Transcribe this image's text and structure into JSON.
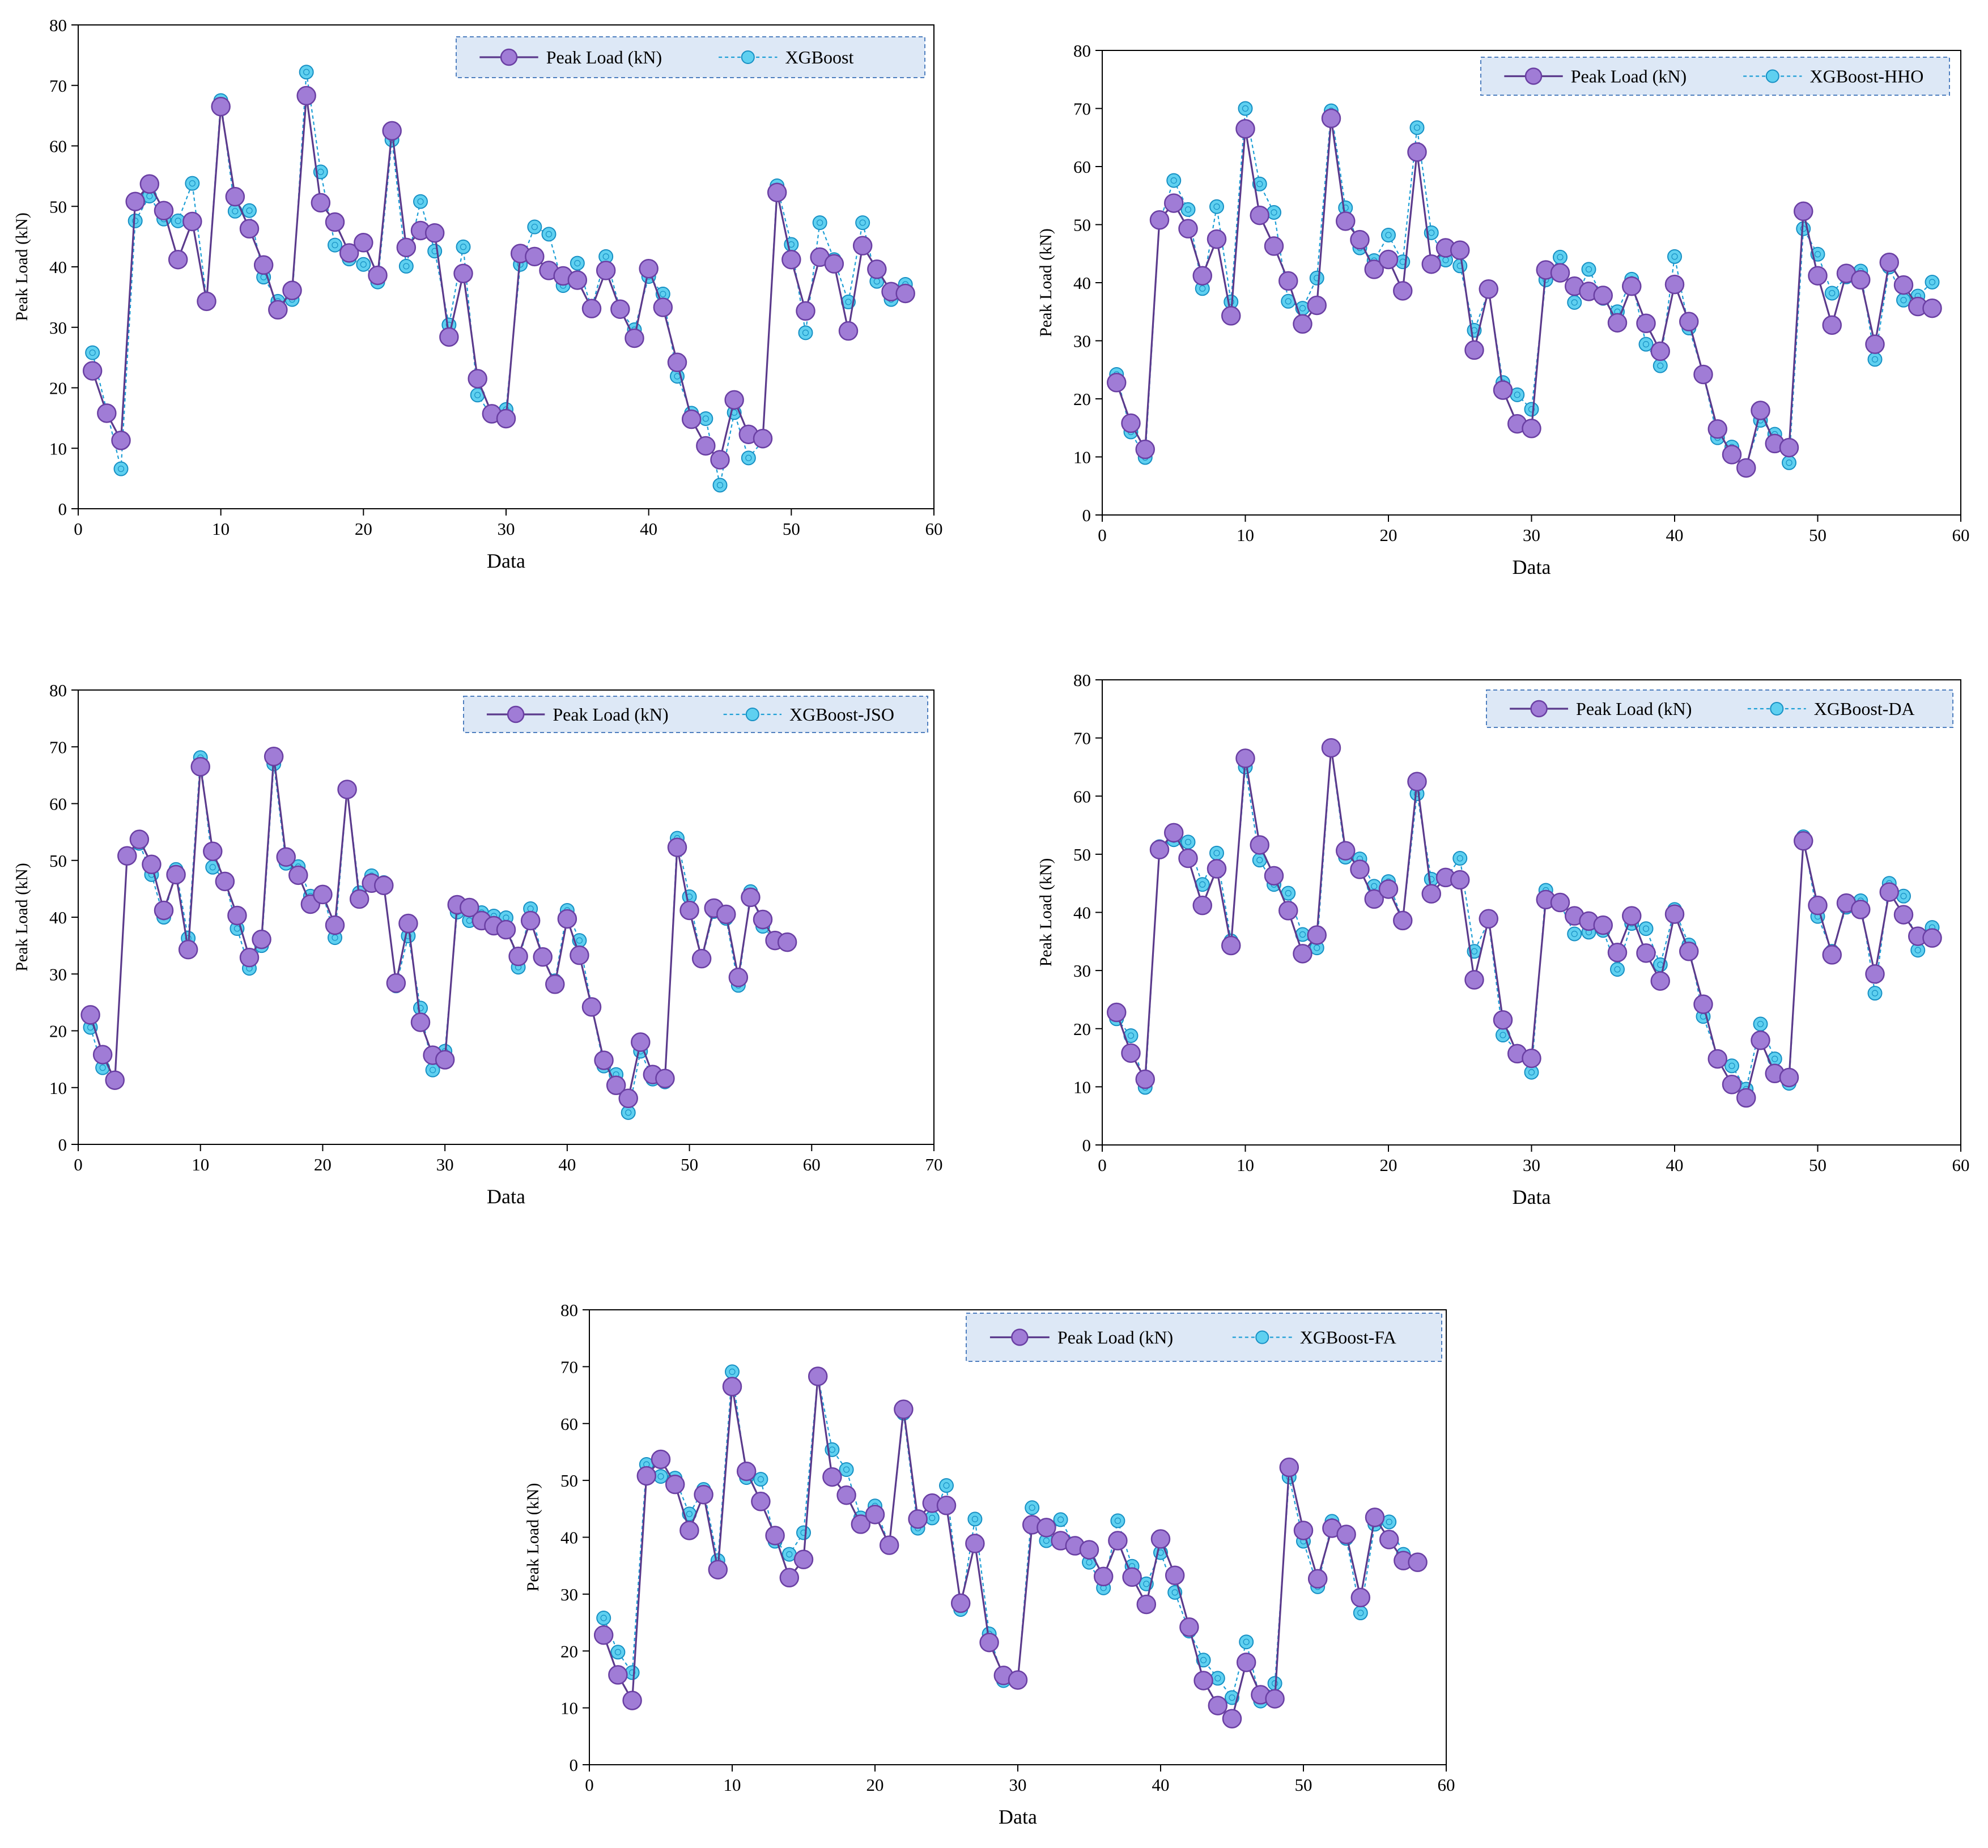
{
  "colors": {
    "actual_line": "#5b3a8c",
    "actual_fill": "#a07cd6",
    "actual_edge": "#6a3fa3",
    "pred_line": "#1e9fd6",
    "pred_fill": "#5fd0f0",
    "pred_edge": "#1790c4",
    "legend_fill": "#dde8f6",
    "legend_border": "#4f7fbf"
  },
  "chart_data": [
    {
      "type": "line",
      "title": "",
      "xlabel": "Data",
      "ylabel": "Peak Load (kN)",
      "xlim": [
        0,
        60
      ],
      "ylim": [
        0,
        80
      ],
      "xticks": [
        "0",
        "10",
        "20",
        "30",
        "40",
        "50",
        "60"
      ],
      "yticks": [
        "0",
        "10",
        "20",
        "30",
        "40",
        "50",
        "60",
        "70",
        "80"
      ],
      "legend_position": "top-right",
      "x": [
        1,
        2,
        3,
        4,
        5,
        6,
        7,
        8,
        9,
        10,
        11,
        12,
        13,
        14,
        15,
        16,
        17,
        18,
        19,
        20,
        21,
        22,
        23,
        24,
        25,
        26,
        27,
        28,
        29,
        30,
        31,
        32,
        33,
        34,
        35,
        36,
        37,
        38,
        39,
        40,
        41,
        42,
        43,
        44,
        45,
        46,
        47,
        48,
        49,
        50,
        51,
        52,
        53,
        54,
        55,
        56,
        57,
        58
      ],
      "series": [
        {
          "name": "Peak Load (kN)",
          "role": "actual",
          "values": [
            22.8,
            15.8,
            11.3,
            50.8,
            53.7,
            49.3,
            41.2,
            47.5,
            34.3,
            66.5,
            51.6,
            46.3,
            40.3,
            32.9,
            36.1,
            68.3,
            50.6,
            47.4,
            42.3,
            44.0,
            38.6,
            62.5,
            43.2,
            46.0,
            45.6,
            28.4,
            38.9,
            21.5,
            15.7,
            14.9,
            42.2,
            41.7,
            39.4,
            38.5,
            37.8,
            33.1,
            39.4,
            33.0,
            28.2,
            39.7,
            33.3,
            24.2,
            14.8,
            10.4,
            8.1,
            18.0,
            12.3,
            11.6,
            52.3,
            41.2,
            32.7,
            41.6,
            40.5,
            29.4,
            43.5,
            39.6,
            35.9,
            35.6
          ]
        },
        {
          "name": "XGBoost",
          "role": "predicted",
          "values": [
            25.8,
            16.2,
            6.6,
            47.6,
            51.7,
            47.9,
            47.6,
            53.8,
            34.6,
            67.5,
            49.2,
            49.3,
            38.3,
            34.3,
            34.6,
            72.2,
            55.7,
            43.6,
            41.3,
            40.4,
            37.5,
            61.0,
            40.1,
            50.8,
            42.6,
            30.4,
            43.3,
            18.8,
            15.3,
            16.4,
            40.4,
            46.6,
            45.4,
            36.9,
            40.6,
            33.2,
            41.7,
            32.9,
            29.6,
            38.4,
            35.5,
            21.9,
            15.8,
            14.9,
            3.9,
            15.9,
            8.4,
            11.2,
            53.4,
            43.7,
            29.1,
            47.3,
            41.2,
            34.2,
            47.3,
            37.6,
            34.6,
            37.1
          ]
        },
        {
          "name": "XGBoost-HHO",
          "role": "predicted",
          "values": [
            24.2,
            14.3,
            9.9,
            50.5,
            57.6,
            52.6,
            39.0,
            53.1,
            36.7,
            70.0,
            57.0,
            52.1,
            36.8,
            35.6,
            40.8,
            69.6,
            52.9,
            46.0,
            43.8,
            48.2,
            43.6,
            66.7,
            48.6,
            43.9,
            42.9,
            31.8,
            38.5,
            22.8,
            20.7,
            18.2,
            40.5,
            44.4,
            36.6,
            42.3,
            37.3,
            35.0,
            40.6,
            29.4,
            25.7,
            44.5,
            32.2,
            24.3,
            13.3,
            11.7,
            8.4,
            16.3,
            13.9,
            9.0,
            49.3,
            44.9,
            38.2,
            41.0,
            42.0,
            26.8,
            42.7,
            37.0,
            37.7,
            40.1
          ]
        },
        {
          "name": "XGBoost-JSO",
          "role": "predicted",
          "values": [
            20.6,
            13.5,
            11.1,
            50.6,
            53.0,
            47.5,
            40.0,
            48.4,
            36.3,
            68.1,
            48.8,
            46.6,
            38.0,
            31.0,
            35.0,
            67.0,
            49.5,
            48.9,
            43.7,
            44.2,
            36.4,
            62.5,
            44.3,
            47.3,
            46.1,
            27.9,
            36.7,
            24.0,
            13.1,
            16.4,
            40.9,
            39.4,
            40.8,
            40.2,
            39.9,
            31.2,
            41.5,
            32.8,
            28.8,
            41.2,
            35.9,
            24.3,
            13.8,
            12.3,
            5.6,
            16.4,
            11.5,
            11.0,
            53.9,
            43.6,
            32.4,
            41.0,
            39.8,
            28.0,
            44.5,
            38.4,
            35.9,
            35.8
          ]
        },
        {
          "name": "XGBoost-DA",
          "role": "predicted",
          "values": [
            21.7,
            18.8,
            9.9,
            51.3,
            52.5,
            52.1,
            44.8,
            50.2,
            35.1,
            65.0,
            49.0,
            44.8,
            43.3,
            36.2,
            33.9,
            68.1,
            49.5,
            49.2,
            44.5,
            45.3,
            38.6,
            60.4,
            45.7,
            45.8,
            49.3,
            33.3,
            38.5,
            18.9,
            16.1,
            12.5,
            43.8,
            41.5,
            36.3,
            36.6,
            36.9,
            30.2,
            38.1,
            37.2,
            31.0,
            40.5,
            34.4,
            22.1,
            15.2,
            13.6,
            9.6,
            20.8,
            14.8,
            10.6,
            53.0,
            39.3,
            33.3,
            40.9,
            42.0,
            26.1,
            45.0,
            42.8,
            33.5,
            37.4
          ]
        },
        {
          "name": "XGBoost-FA",
          "role": "predicted",
          "values": [
            25.8,
            19.8,
            16.2,
            52.8,
            50.7,
            50.4,
            44.1,
            48.4,
            35.9,
            69.1,
            50.5,
            50.2,
            39.3,
            37.0,
            40.8,
            68.4,
            55.4,
            51.9,
            43.4,
            45.5,
            38.5,
            61.8,
            41.6,
            43.4,
            49.1,
            27.3,
            43.2,
            23.0,
            14.8,
            14.6,
            45.2,
            39.4,
            43.1,
            38.4,
            35.6,
            31.1,
            42.9,
            34.9,
            31.8,
            37.3,
            30.3,
            23.5,
            18.4,
            15.2,
            11.8,
            21.6,
            11.2,
            14.3,
            50.6,
            39.3,
            31.3,
            42.8,
            39.8,
            26.7,
            42.3,
            42.7,
            37.0,
            35.8
          ]
        }
      ]
    }
  ]
}
